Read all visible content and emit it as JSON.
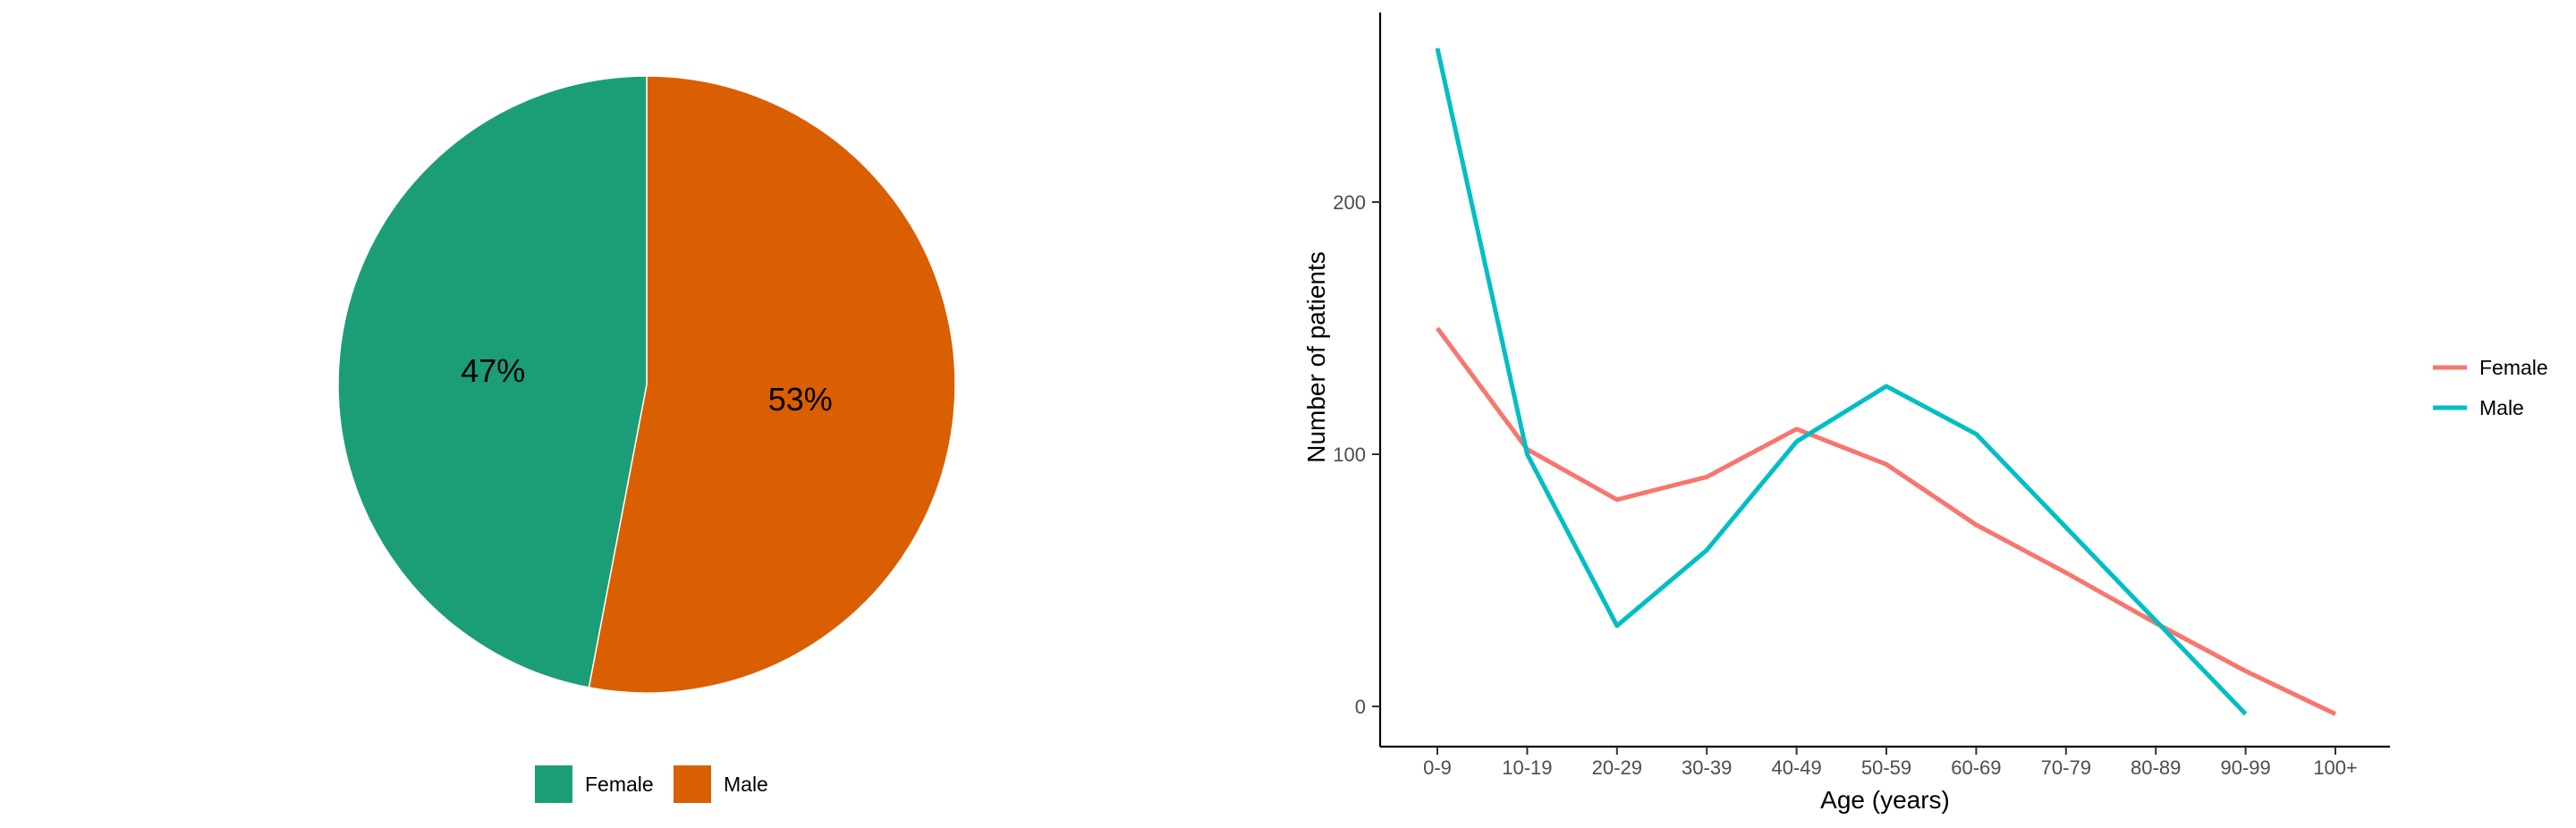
{
  "chart_data": [
    {
      "type": "pie",
      "categories": [
        "Female",
        "Male"
      ],
      "values": [
        47,
        53
      ],
      "labels": [
        "47%",
        "53%"
      ],
      "colors": [
        "#1b9e77",
        "#d95f02"
      ],
      "legend": {
        "position": "bottom",
        "entries": [
          "Female",
          "Male"
        ]
      }
    },
    {
      "type": "line",
      "categories": [
        "0-9",
        "10-19",
        "20-29",
        "30-39",
        "40-49",
        "50-59",
        "60-69",
        "70-79",
        "80-89",
        "90-99",
        "100+"
      ],
      "series": [
        {
          "name": "Female",
          "color": "#f8766d",
          "values": [
            150,
            102,
            82,
            91,
            110,
            96,
            72,
            53,
            33,
            14,
            -3
          ]
        },
        {
          "name": "Male",
          "color": "#00bfc4",
          "values": [
            261,
            100,
            32,
            62,
            105,
            127,
            108,
            null,
            null,
            -3,
            null
          ]
        }
      ],
      "xlabel": "Age (years)",
      "ylabel": "Number of patients",
      "yticks": [
        0,
        100,
        200
      ],
      "ylim": [
        -16,
        276
      ],
      "grid": false,
      "legend": {
        "position": "right",
        "entries": [
          "Female",
          "Male"
        ]
      }
    }
  ]
}
